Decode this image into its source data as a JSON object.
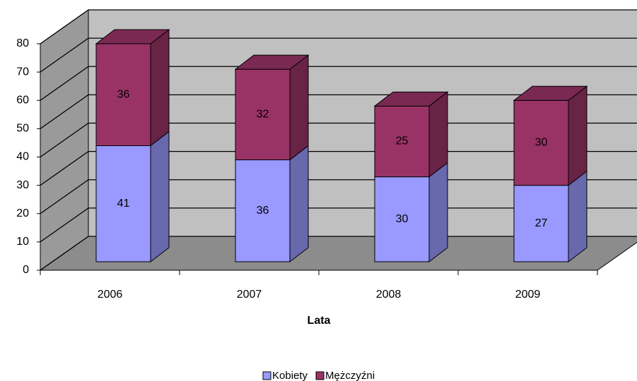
{
  "chart_data": {
    "type": "bar3d_stacked",
    "x_label": "Lata",
    "categories": [
      "2006",
      "2007",
      "2008",
      "2009"
    ],
    "series": [
      {
        "name": "Kobiety",
        "color": "#9999ff",
        "values": [
          41,
          36,
          30,
          27
        ]
      },
      {
        "name": "Mężczyźni",
        "color": "#993366",
        "values": [
          36,
          32,
          25,
          30
        ]
      }
    ],
    "ylim": [
      0,
      80
    ],
    "yticks": [
      0,
      10,
      20,
      30,
      40,
      50,
      60,
      70,
      80
    ],
    "grid": true,
    "legend": "bottom"
  }
}
